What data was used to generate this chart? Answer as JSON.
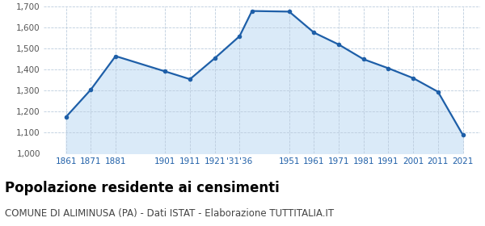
{
  "years": [
    1861,
    1871,
    1881,
    1901,
    1911,
    1921,
    1931,
    1936,
    1951,
    1961,
    1971,
    1981,
    1991,
    2001,
    2011,
    2021
  ],
  "population": [
    1175,
    1305,
    1465,
    1392,
    1355,
    1455,
    1560,
    1680,
    1677,
    1577,
    1520,
    1450,
    1407,
    1360,
    1295,
    1090
  ],
  "ylim": [
    1000,
    1700
  ],
  "yticks": [
    1000,
    1100,
    1200,
    1300,
    1400,
    1500,
    1600,
    1700
  ],
  "xtick_positions": [
    1861,
    1871,
    1881,
    1901,
    1911,
    1921,
    1931,
    1951,
    1961,
    1971,
    1981,
    1991,
    2001,
    2011,
    2021
  ],
  "xtick_labels": [
    "1861",
    "1871",
    "1881",
    "1901",
    "1911",
    "1921",
    "'31'36",
    "1951",
    "1961",
    "1971",
    "1981",
    "1991",
    "2001",
    "2011",
    "2021"
  ],
  "xlim_left": 1852,
  "xlim_right": 2028,
  "line_color": "#1e5fa8",
  "fill_color": "#daeaf8",
  "marker_color": "#1e5fa8",
  "background_color": "#ffffff",
  "grid_color": "#bbccdd",
  "title": "Popolazione residente ai censimenti",
  "subtitle": "COMUNE DI ALIMINUSA (PA) - Dati ISTAT - Elaborazione TUTTITALIA.IT",
  "title_fontsize": 12,
  "subtitle_fontsize": 8.5,
  "title_color": "#000000",
  "subtitle_color": "#444444",
  "tick_label_color": "#1e5fa8",
  "ytick_label_color": "#555555"
}
